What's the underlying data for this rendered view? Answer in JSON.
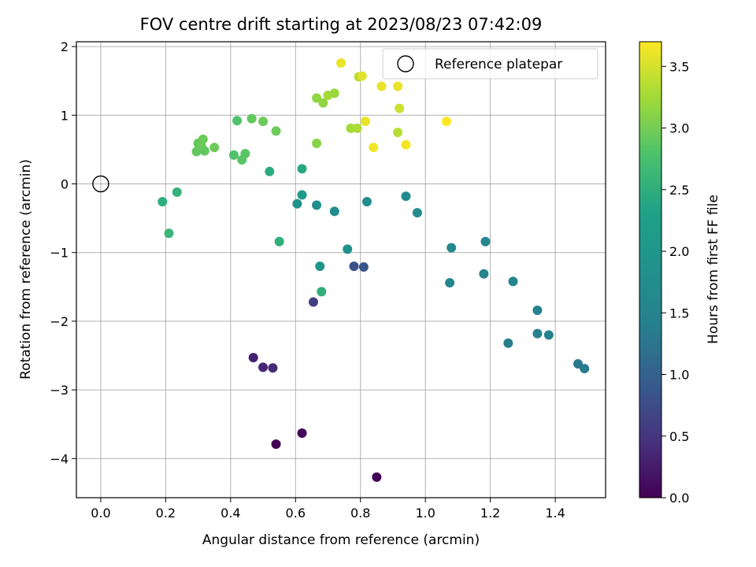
{
  "chart_data": {
    "type": "scatter",
    "title": "FOV centre drift starting at 2023/08/23 07:42:09",
    "xlabel": "Angular distance from reference (arcmin)",
    "ylabel": "Rotation from reference (arcmin)",
    "xlim": [
      -0.075,
      1.555
    ],
    "ylim": [
      -4.57,
      2.07
    ],
    "xticks": [
      "0.0",
      "0.2",
      "0.4",
      "0.6",
      "0.8",
      "1.0",
      "1.2",
      "1.4"
    ],
    "yticks": [
      "−4",
      "−3",
      "−2",
      "−1",
      "0",
      "1",
      "2"
    ],
    "grid": true,
    "legend": {
      "position": "top-right",
      "label": "Reference platepar"
    },
    "reference_point": {
      "x": 0.0,
      "y": 0.0
    },
    "colorbar": {
      "label": "Hours from first FF file",
      "colormap": "viridis",
      "range": [
        0.0,
        3.7
      ],
      "ticks": [
        "0.0",
        "0.5",
        "1.0",
        "1.5",
        "2.0",
        "2.5",
        "3.0",
        "3.5"
      ]
    },
    "points": [
      {
        "x": 0.54,
        "y": -3.79,
        "hours": 0.0
      },
      {
        "x": 0.85,
        "y": -4.27,
        "hours": 0.02
      },
      {
        "x": 0.62,
        "y": -3.63,
        "hours": 0.05
      },
      {
        "x": 0.47,
        "y": -2.53,
        "hours": 0.3
      },
      {
        "x": 0.5,
        "y": -2.67,
        "hours": 0.35
      },
      {
        "x": 0.53,
        "y": -2.68,
        "hours": 0.4
      },
      {
        "x": 0.655,
        "y": -1.72,
        "hours": 0.6
      },
      {
        "x": 0.78,
        "y": -1.2,
        "hours": 0.8
      },
      {
        "x": 0.81,
        "y": -1.21,
        "hours": 0.85
      },
      {
        "x": 1.47,
        "y": -2.62,
        "hours": 1.3
      },
      {
        "x": 1.49,
        "y": -2.69,
        "hours": 1.35
      },
      {
        "x": 1.255,
        "y": -2.32,
        "hours": 1.4
      },
      {
        "x": 1.345,
        "y": -2.18,
        "hours": 1.45
      },
      {
        "x": 1.38,
        "y": -2.2,
        "hours": 1.45
      },
      {
        "x": 1.345,
        "y": -1.84,
        "hours": 1.5
      },
      {
        "x": 1.18,
        "y": -1.31,
        "hours": 1.55
      },
      {
        "x": 1.27,
        "y": -1.42,
        "hours": 1.55
      },
      {
        "x": 1.075,
        "y": -1.44,
        "hours": 1.6
      },
      {
        "x": 1.185,
        "y": -0.84,
        "hours": 1.6
      },
      {
        "x": 1.08,
        "y": -0.93,
        "hours": 1.65
      },
      {
        "x": 0.975,
        "y": -0.42,
        "hours": 1.7
      },
      {
        "x": 0.94,
        "y": -0.18,
        "hours": 1.7
      },
      {
        "x": 0.82,
        "y": -0.26,
        "hours": 1.75
      },
      {
        "x": 0.72,
        "y": -0.4,
        "hours": 1.75
      },
      {
        "x": 0.665,
        "y": -0.31,
        "hours": 1.8
      },
      {
        "x": 0.605,
        "y": -0.29,
        "hours": 1.85
      },
      {
        "x": 0.76,
        "y": -0.95,
        "hours": 1.85
      },
      {
        "x": 0.675,
        "y": -1.2,
        "hours": 1.95
      },
      {
        "x": 0.62,
        "y": -0.16,
        "hours": 2.05
      },
      {
        "x": 0.62,
        "y": 0.22,
        "hours": 2.4
      },
      {
        "x": 0.52,
        "y": 0.18,
        "hours": 2.45
      },
      {
        "x": 0.55,
        "y": -0.84,
        "hours": 2.5
      },
      {
        "x": 0.68,
        "y": -1.57,
        "hours": 2.5
      },
      {
        "x": 0.19,
        "y": -0.26,
        "hours": 2.5
      },
      {
        "x": 0.235,
        "y": -0.12,
        "hours": 2.55
      },
      {
        "x": 0.21,
        "y": -0.72,
        "hours": 2.6
      },
      {
        "x": 0.41,
        "y": 0.42,
        "hours": 2.8
      },
      {
        "x": 0.42,
        "y": 0.92,
        "hours": 2.8
      },
      {
        "x": 0.435,
        "y": 0.35,
        "hours": 2.85
      },
      {
        "x": 0.445,
        "y": 0.44,
        "hours": 2.85
      },
      {
        "x": 0.465,
        "y": 0.95,
        "hours": 2.9
      },
      {
        "x": 0.5,
        "y": 0.91,
        "hours": 2.95
      },
      {
        "x": 0.54,
        "y": 0.77,
        "hours": 2.95
      },
      {
        "x": 0.295,
        "y": 0.47,
        "hours": 2.9
      },
      {
        "x": 0.3,
        "y": 0.59,
        "hours": 2.9
      },
      {
        "x": 0.31,
        "y": 0.55,
        "hours": 2.95
      },
      {
        "x": 0.315,
        "y": 0.65,
        "hours": 2.95
      },
      {
        "x": 0.32,
        "y": 0.48,
        "hours": 2.9
      },
      {
        "x": 0.35,
        "y": 0.53,
        "hours": 2.95
      },
      {
        "x": 0.665,
        "y": 0.59,
        "hours": 3.1
      },
      {
        "x": 0.665,
        "y": 1.25,
        "hours": 3.15
      },
      {
        "x": 0.685,
        "y": 1.18,
        "hours": 3.15
      },
      {
        "x": 0.7,
        "y": 1.29,
        "hours": 3.25
      },
      {
        "x": 0.72,
        "y": 1.32,
        "hours": 3.2
      },
      {
        "x": 0.77,
        "y": 0.81,
        "hours": 3.25
      },
      {
        "x": 0.79,
        "y": 0.81,
        "hours": 3.3
      },
      {
        "x": 0.795,
        "y": 1.56,
        "hours": 3.35
      },
      {
        "x": 0.915,
        "y": 0.75,
        "hours": 3.35
      },
      {
        "x": 0.92,
        "y": 1.1,
        "hours": 3.45
      },
      {
        "x": 0.805,
        "y": 1.57,
        "hours": 3.55
      },
      {
        "x": 0.74,
        "y": 1.76,
        "hours": 3.6
      },
      {
        "x": 0.815,
        "y": 0.91,
        "hours": 3.6
      },
      {
        "x": 0.84,
        "y": 0.53,
        "hours": 3.65
      },
      {
        "x": 0.865,
        "y": 1.42,
        "hours": 3.6
      },
      {
        "x": 0.915,
        "y": 1.42,
        "hours": 3.6
      },
      {
        "x": 0.94,
        "y": 0.57,
        "hours": 3.65
      },
      {
        "x": 1.065,
        "y": 0.91,
        "hours": 3.7
      }
    ]
  }
}
